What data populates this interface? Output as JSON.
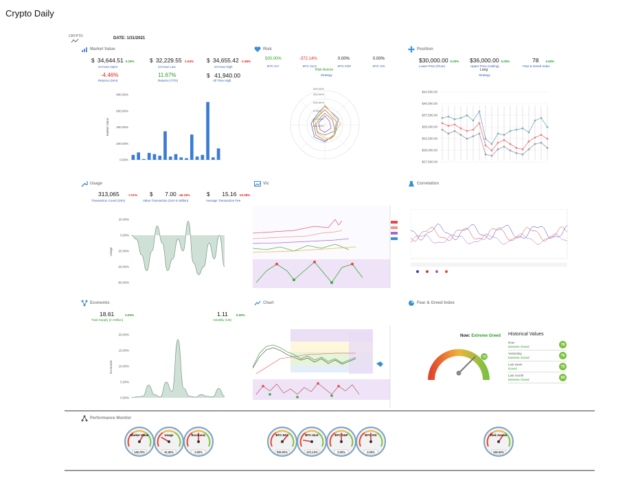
{
  "app_title": "Crypto Daily",
  "logo_text": "CRYPTO",
  "date_label": "DATE:  1/31/2021",
  "panels": {
    "market_value": "Market Value",
    "risk": "Risk",
    "position": "Position",
    "usage": "Usage",
    "vic": "Vic",
    "correlation": "Correlation",
    "economic": "Economic",
    "chart": "Chart",
    "fear_greed": "Fear & Greed Index",
    "performance": "Performance Monitor"
  },
  "market": {
    "open_val": "34,644.51",
    "open_chg": "0.25%",
    "open_lbl": "24 Hour Open",
    "low_val": "32,229.55",
    "low_chg": "-1.94%",
    "low_lbl": "24 Hour Low",
    "high_val": "34,655.42",
    "high_chg": "-1.58%",
    "high_lbl": "24 Hour High",
    "ret24_val": "-4.46%",
    "ret24_lbl": "Returns (24H)",
    "ytd_val": "11.67%",
    "ytd_lbl": "Returns (YTD)",
    "ath_val": "41,940.00",
    "ath_lbl": "All Time High",
    "currency": "$"
  },
  "risk": {
    "btc_ixy_val": "500.00%",
    "btc_ixy_lbl": "BTC IXY",
    "btc_glo_val": "-372.14%",
    "btc_glo_lbl": "BTC GLO",
    "btc_ksp_val": "0.00%",
    "btc_ksp_lbl": "BTC KSP",
    "btc_vix_val": "0.00%",
    "btc_vix_lbl": "BTC VIX",
    "strategy_val": "Risk Averse",
    "strategy_lbl": "Strategy"
  },
  "position": {
    "lower_val": "$30,000.00",
    "lower_chg": "0.00%",
    "lower_lbl": "Lower Price (Floor)",
    "upper_val": "$36,000.00",
    "upper_chg": "0.00%",
    "upper_lbl": "Upper Price (Ceiling)",
    "fg_val": "78",
    "fg_chg": "2.63%",
    "fg_lbl": "Fear & Greed Index",
    "strategy_val": "Long",
    "strategy_lbl": "Strategy"
  },
  "usage": {
    "tc_val": "313,065",
    "tc_chg": "-7.01%",
    "tc_lbl": "Transaction Count (24H)",
    "vt_val": "7.00",
    "vt_chg": "-46.33%",
    "vt_lbl": "Value Transaction (24H in Billion)",
    "atf_val": "15.16",
    "atf_chg": "-10.08%",
    "atf_lbl": "Average Transaction Fee",
    "currency": "$"
  },
  "economic": {
    "ts_val": "18.61",
    "ts_chg": "0.00%",
    "ts_lbl": "Total Supply (in Million)",
    "vol_val": "1.11",
    "vol_chg": "0.00%",
    "vol_lbl": "Volatility (1M)"
  },
  "fear_greed": {
    "now_label": "Now:",
    "now_class": "Extreme Greed",
    "now_value": "78",
    "hist_title": "Historical Values",
    "history": [
      {
        "name": "Now",
        "cls": "Extreme Greed",
        "val": "78"
      },
      {
        "name": "Yesterday",
        "cls": "Extreme Greed",
        "val": "76"
      },
      {
        "name": "Last week",
        "cls": "Greed",
        "val": "70"
      },
      {
        "name": "Last month",
        "cls": "Extreme Greed",
        "val": "94"
      }
    ]
  },
  "gauges": [
    {
      "label": "Market Value",
      "value": "148.70%"
    },
    {
      "label": "Usage",
      "value": "42.96%"
    },
    {
      "label": "Economic",
      "value": "0.00%"
    },
    {
      "label": "BTC-DXY",
      "value": "500.00%"
    },
    {
      "label": "BTC-GLD",
      "value": "-372.14%"
    },
    {
      "label": "BTC-S&P",
      "value": "0.00%"
    },
    {
      "label": "BTC-VIX",
      "value": "0.00%"
    },
    {
      "label": "Risk Averse",
      "value": "289.93%"
    }
  ],
  "chart_data": [
    {
      "type": "bar",
      "ylabel": "Market Value",
      "yticks": [
        "800.00%",
        "600.00%",
        "400.00%",
        "200.00%",
        "0.00%"
      ],
      "ylim": [
        0,
        800
      ],
      "values": [
        60,
        90,
        10,
        85,
        70,
        50,
        350,
        40,
        70,
        30,
        20,
        310,
        40,
        60,
        710,
        30,
        140
      ]
    },
    {
      "type": "area",
      "ylabel": "Usage",
      "yticks": [
        "20.00%",
        "0.00%",
        "-20.00%",
        "-40.00%",
        "-60.00%"
      ],
      "ylim": [
        -60,
        20
      ],
      "values": [
        0,
        -5,
        -25,
        -45,
        -20,
        12,
        -10,
        -45,
        -30,
        -5,
        -20,
        18,
        -35,
        -50,
        -40,
        -10,
        -30,
        0,
        -40
      ]
    },
    {
      "type": "area",
      "ylabel": "Economic",
      "yticks": [
        "20.00%",
        "15.00%",
        "10.00%",
        "5.00%",
        "0.00%"
      ],
      "ylim": [
        0,
        20
      ],
      "values": [
        0,
        0.3,
        0.5,
        4,
        1,
        0.3,
        5,
        2,
        18.5,
        3,
        0.5,
        0.2,
        1,
        0.5,
        0.3,
        3,
        0.5
      ]
    },
    {
      "type": "line",
      "yticks": [
        "$42,500.00",
        "$40,000.00",
        "$37,500.00",
        "$35,000.00",
        "$32,500.00",
        "$30,000.00",
        "$27,500.00"
      ],
      "ylim": [
        27500,
        42500
      ]
    }
  ],
  "colors": {
    "bar": "#3a7bd5",
    "area_fill": "#cfe0d6",
    "gauge_green": "#7cc142",
    "accent_blue": "#2a5bb8"
  }
}
